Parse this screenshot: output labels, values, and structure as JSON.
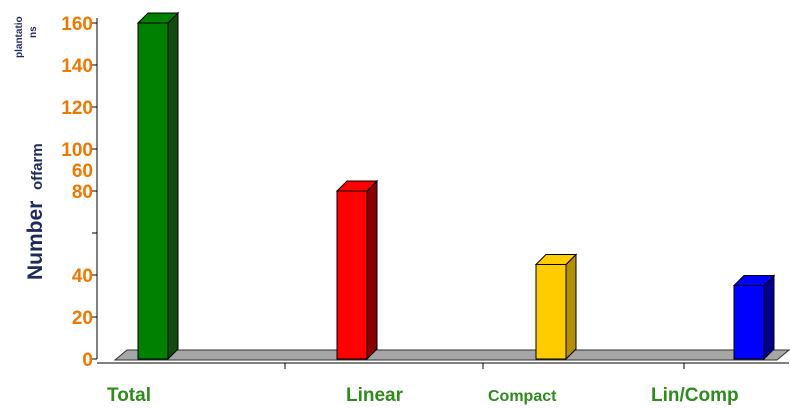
{
  "chart_data": {
    "type": "bar",
    "categories": [
      "Total",
      "Linear",
      "Compact",
      "Lin/Comp"
    ],
    "values": [
      160,
      80,
      45,
      35
    ],
    "colors": [
      "#008000",
      "#ff0000",
      "#ffcc00",
      "#0000ff"
    ],
    "side_colors": [
      "#0f4d0f",
      "#8a0000",
      "#b38f00",
      "#00008a"
    ],
    "ylabel": {
      "main": "Number",
      "part2": "offarm",
      "part3": "plantatio",
      "part4": "ns"
    },
    "yticks": [
      0,
      20,
      40,
      60,
      80,
      100,
      120,
      140,
      160
    ],
    "ylim": [
      0,
      160
    ],
    "grid": false,
    "legend": "none",
    "colors_text": {
      "tick": "#f07800",
      "category": "#2e8b1c",
      "ylabel": "#1f2a5c",
      "floor": "#a6a6a6"
    }
  }
}
